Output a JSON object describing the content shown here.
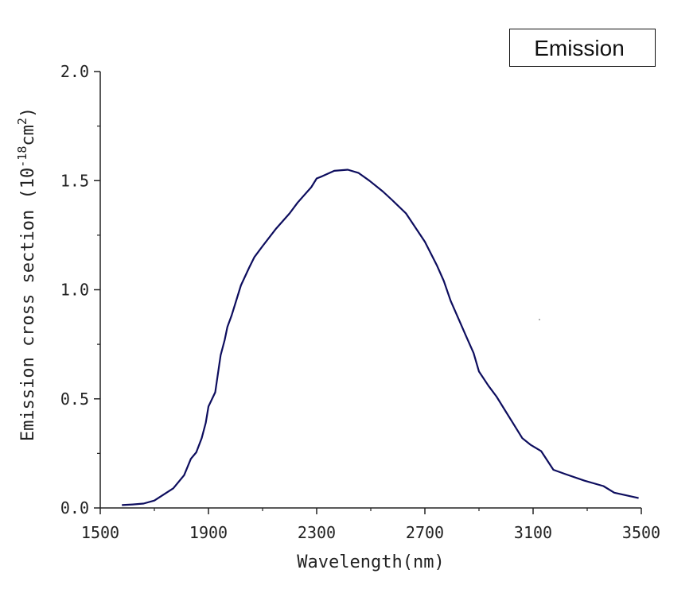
{
  "chart_data": {
    "type": "line",
    "title": "",
    "xlabel": "Wavelength(nm)",
    "ylabel": "Emission cross section",
    "ylabel_unit_prefix": "(10",
    "ylabel_unit_exp": "-18",
    "ylabel_unit_mid": "cm",
    "ylabel_unit_exp2": "2",
    "ylabel_unit_suffix": ")",
    "xlim": [
      1500,
      3500
    ],
    "ylim": [
      0,
      2.0
    ],
    "xticks": [
      1500,
      1900,
      2300,
      2700,
      3100,
      3500
    ],
    "xtick_labels": [
      "1500",
      "1900",
      "2300",
      "2700",
      "3100",
      "3500"
    ],
    "yticks": [
      0,
      0.5,
      1.0,
      1.5,
      2.0
    ],
    "ytick_labels": [
      "0.0",
      "0.5",
      "1.0",
      "1.5",
      "2.0"
    ],
    "grid": false,
    "legend_position": "top-right",
    "series": [
      {
        "name": "Emission",
        "color": "#0d0d5e",
        "x": [
          1580,
          1620,
          1660,
          1700,
          1770,
          1810,
          1835,
          1855,
          1875,
          1890,
          1900,
          1925,
          1945,
          1960,
          1970,
          1985,
          2000,
          2020,
          2050,
          2070,
          2100,
          2150,
          2200,
          2230,
          2280,
          2300,
          2320,
          2365,
          2415,
          2455,
          2495,
          2545,
          2580,
          2630,
          2700,
          2745,
          2770,
          2795,
          2825,
          2855,
          2880,
          2900,
          2935,
          2965,
          2995,
          3025,
          3060,
          3090,
          3130,
          3175,
          3220,
          3290,
          3360,
          3400,
          3490
        ],
        "y": [
          0.013,
          0.016,
          0.02,
          0.034,
          0.09,
          0.15,
          0.225,
          0.255,
          0.32,
          0.39,
          0.465,
          0.53,
          0.7,
          0.77,
          0.83,
          0.88,
          0.94,
          1.02,
          1.1,
          1.15,
          1.2,
          1.28,
          1.35,
          1.4,
          1.47,
          1.51,
          1.52,
          1.545,
          1.55,
          1.535,
          1.5,
          1.45,
          1.41,
          1.35,
          1.22,
          1.11,
          1.04,
          0.95,
          0.865,
          0.78,
          0.71,
          0.625,
          0.56,
          0.51,
          0.45,
          0.39,
          0.32,
          0.29,
          0.26,
          0.175,
          0.155,
          0.125,
          0.1,
          0.07,
          0.045
        ]
      }
    ]
  }
}
